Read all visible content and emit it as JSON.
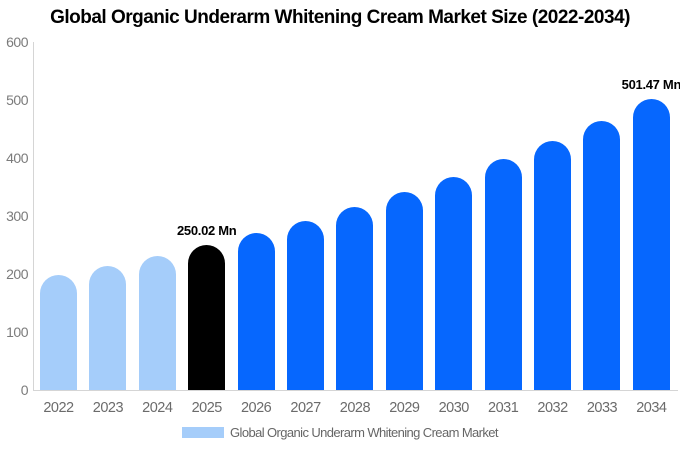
{
  "title": "Global Organic Underarm Whitening Cream Market Size (2022-2034)",
  "legend": {
    "label": "Global Organic Underarm Whitening Cream Market"
  },
  "colors": {
    "historical": "#a5cdfa",
    "base": "#000000",
    "forecast": "#0667fe",
    "axis_line": "#d5d5d5",
    "y_tick_label": "#7b7b7b",
    "x_tick_label": "#6b6b6b",
    "legend_text": "#666666",
    "title_text": "#000000"
  },
  "chart_data": {
    "type": "bar",
    "title": "Global Organic Underarm Whitening Cream Market Size (2022-2034)",
    "categories": [
      "2022",
      "2023",
      "2024",
      "2025",
      "2026",
      "2027",
      "2028",
      "2029",
      "2030",
      "2031",
      "2032",
      "2033",
      "2034"
    ],
    "values": [
      198.3,
      214.2,
      231.5,
      250.02,
      270.1,
      291.9,
      315.4,
      340.8,
      368.1,
      397.7,
      429.7,
      464.2,
      501.47
    ],
    "unit": "Mn",
    "roles": [
      "historical",
      "historical",
      "historical",
      "base",
      "forecast",
      "forecast",
      "forecast",
      "forecast",
      "forecast",
      "forecast",
      "forecast",
      "forecast",
      "forecast"
    ],
    "annotations": [
      {
        "category": "2025",
        "text": "250.02 Mn"
      },
      {
        "category": "2034",
        "text": "501.47 Mn"
      }
    ],
    "xlabel": "",
    "ylabel": "",
    "ylim": [
      0,
      600
    ],
    "yticks": [
      0,
      100,
      200,
      300,
      400,
      500,
      600
    ],
    "grid": false,
    "legend_entries": [
      "Global Organic Underarm Whitening Cream Market"
    ],
    "legend_position": "bottom"
  }
}
